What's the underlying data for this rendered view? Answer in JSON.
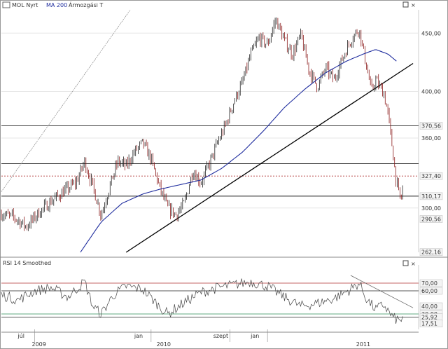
{
  "legend": {
    "items": [
      {
        "label": "MOL Nyrt",
        "color": "#333333"
      },
      {
        "label": "MA 200",
        "color": "#1f2d9e"
      },
      {
        "label": "Ármozgási T",
        "color": "#333333"
      }
    ]
  },
  "rsi_panel": {
    "label": "RSI 14 Smoothed",
    "color": "#333333"
  },
  "colors": {
    "price": "#222222",
    "ma": "#1f2d9e",
    "trendline": "#000000",
    "horizontal_red": "#b03030",
    "horizontal_green": "#2e8b57",
    "down_candle": "#8b1a1a"
  },
  "chart_data": [
    {
      "type": "line",
      "panel": "price",
      "ylim": [
        262,
        470
      ],
      "y_ticks": [
        {
          "value": 450,
          "label": "450,00"
        },
        {
          "value": 400,
          "label": "400,00"
        },
        {
          "value": 360,
          "label": "360,00"
        },
        {
          "value": 300,
          "label": "300,00"
        }
      ],
      "value_labels": [
        {
          "value": 370.56,
          "label": "370,56"
        },
        {
          "value": 327.4,
          "label": "327,40"
        },
        {
          "value": 310.17,
          "label": "310,17"
        },
        {
          "value": 290.56,
          "label": "290,56"
        },
        {
          "value": 262.16,
          "label": "262,16"
        }
      ],
      "x_ticks": [
        {
          "t": 0.08,
          "label": "júl"
        },
        {
          "t": 0.36,
          "label": "jan"
        },
        {
          "t": 0.55,
          "label": "szept"
        },
        {
          "t": 0.64,
          "label": "jan"
        }
      ],
      "year_labels": [
        {
          "t": 0.09,
          "label": "2009"
        },
        {
          "t": 0.39,
          "label": "2010"
        },
        {
          "t": 0.87,
          "label": "2011"
        }
      ],
      "price_keypoints": [
        [
          0.0,
          295
        ],
        [
          0.03,
          292
        ],
        [
          0.06,
          284
        ],
        [
          0.09,
          296
        ],
        [
          0.12,
          306
        ],
        [
          0.15,
          314
        ],
        [
          0.18,
          322
        ],
        [
          0.2,
          340
        ],
        [
          0.22,
          318
        ],
        [
          0.24,
          294
        ],
        [
          0.26,
          318
        ],
        [
          0.28,
          340
        ],
        [
          0.3,
          336
        ],
        [
          0.32,
          348
        ],
        [
          0.34,
          356
        ],
        [
          0.36,
          342
        ],
        [
          0.38,
          318
        ],
        [
          0.4,
          300
        ],
        [
          0.42,
          294
        ],
        [
          0.44,
          304
        ],
        [
          0.46,
          332
        ],
        [
          0.48,
          322
        ],
        [
          0.5,
          338
        ],
        [
          0.52,
          356
        ],
        [
          0.54,
          372
        ],
        [
          0.56,
          392
        ],
        [
          0.58,
          408
        ],
        [
          0.6,
          432
        ],
        [
          0.62,
          446
        ],
        [
          0.64,
          440
        ],
        [
          0.66,
          462
        ],
        [
          0.68,
          444
        ],
        [
          0.7,
          432
        ],
        [
          0.72,
          448
        ],
        [
          0.74,
          418
        ],
        [
          0.76,
          404
        ],
        [
          0.78,
          420
        ],
        [
          0.8,
          410
        ],
        [
          0.82,
          428
        ],
        [
          0.84,
          444
        ],
        [
          0.86,
          454
        ],
        [
          0.88,
          418
        ],
        [
          0.89,
          400
        ],
        [
          0.9,
          410
        ],
        [
          0.92,
          398
        ],
        [
          0.93,
          380
        ],
        [
          0.94,
          352
        ],
        [
          0.95,
          322
        ],
        [
          0.96,
          306
        ],
        [
          0.965,
          316
        ]
      ],
      "ma200_keypoints": [
        [
          0.19,
          262
        ],
        [
          0.24,
          288
        ],
        [
          0.29,
          304
        ],
        [
          0.34,
          312
        ],
        [
          0.38,
          316
        ],
        [
          0.43,
          320
        ],
        [
          0.48,
          324
        ],
        [
          0.53,
          334
        ],
        [
          0.58,
          348
        ],
        [
          0.63,
          366
        ],
        [
          0.68,
          386
        ],
        [
          0.73,
          402
        ],
        [
          0.78,
          416
        ],
        [
          0.83,
          426
        ],
        [
          0.87,
          432
        ],
        [
          0.9,
          436
        ],
        [
          0.93,
          432
        ],
        [
          0.95,
          426
        ]
      ],
      "trendlines": [
        [
          [
            0.3,
            262
          ],
          [
            0.99,
            424
          ]
        ],
        [
          [
            0.0,
            314
          ],
          [
            0.31,
            470
          ]
        ]
      ],
      "horizontal_levels": [
        {
          "value": 370.56,
          "style": "solid"
        },
        {
          "value": 338,
          "style": "solid"
        },
        {
          "value": 327.4,
          "style": "dashed"
        },
        {
          "value": 310.17,
          "style": "solid"
        }
      ]
    },
    {
      "type": "line",
      "panel": "rsi",
      "ylim": [
        10,
        90
      ],
      "y_ticks": [
        {
          "value": 70,
          "label": "70,00"
        },
        {
          "value": 60,
          "label": "60,00"
        },
        {
          "value": 40,
          "label": "40,00"
        },
        {
          "value": 30,
          "label": "30,00"
        },
        {
          "value": 25.92,
          "label": "25,92"
        },
        {
          "value": 17.51,
          "label": "17,51"
        }
      ],
      "levels": [
        70,
        60,
        30,
        25.92
      ],
      "rsi_keypoints": [
        [
          0.0,
          55
        ],
        [
          0.04,
          48
        ],
        [
          0.08,
          60
        ],
        [
          0.12,
          64
        ],
        [
          0.16,
          52
        ],
        [
          0.2,
          72
        ],
        [
          0.22,
          40
        ],
        [
          0.24,
          30
        ],
        [
          0.27,
          55
        ],
        [
          0.3,
          66
        ],
        [
          0.34,
          62
        ],
        [
          0.38,
          40
        ],
        [
          0.4,
          30
        ],
        [
          0.44,
          45
        ],
        [
          0.48,
          58
        ],
        [
          0.52,
          64
        ],
        [
          0.56,
          68
        ],
        [
          0.6,
          72
        ],
        [
          0.64,
          66
        ],
        [
          0.68,
          52
        ],
        [
          0.72,
          40
        ],
        [
          0.76,
          44
        ],
        [
          0.8,
          50
        ],
        [
          0.84,
          62
        ],
        [
          0.86,
          70
        ],
        [
          0.88,
          48
        ],
        [
          0.9,
          36
        ],
        [
          0.92,
          42
        ],
        [
          0.94,
          26
        ],
        [
          0.96,
          20
        ],
        [
          0.965,
          28
        ]
      ],
      "trendline": [
        [
          0.84,
          80
        ],
        [
          0.99,
          38
        ]
      ]
    }
  ]
}
